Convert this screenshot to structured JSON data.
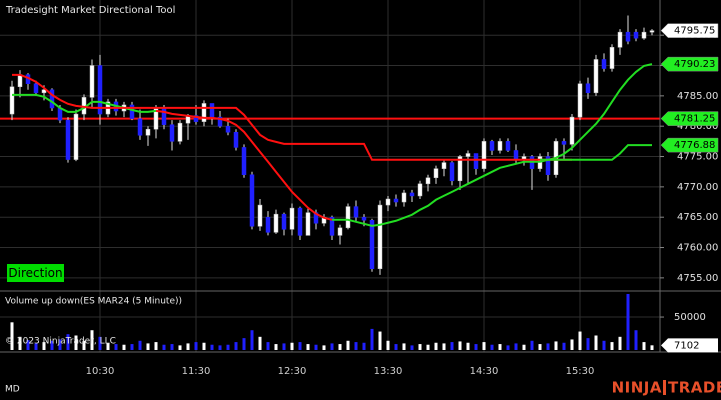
{
  "chart_data": {
    "type": "candlestick",
    "title": "Tradesight Market Directional Tool",
    "button": "Direction",
    "footer": "MD",
    "logo": [
      "NINJA",
      "TRADER"
    ],
    "copyright": "© 2023 NinjaTrader, LLC",
    "grid": true,
    "up_color": "#ffffff",
    "down_color": "#2020ff",
    "categories": [
      null,
      null,
      null,
      null,
      null,
      null,
      null,
      null,
      null,
      null,
      null,
      "10:30",
      null,
      null,
      null,
      null,
      null,
      null,
      null,
      null,
      null,
      null,
      null,
      "11:30",
      null,
      null,
      null,
      null,
      null,
      null,
      null,
      null,
      null,
      null,
      null,
      "12:30",
      null,
      null,
      null,
      null,
      null,
      null,
      null,
      null,
      null,
      null,
      null,
      "13:30",
      null,
      null,
      null,
      null,
      null,
      null,
      null,
      null,
      null,
      null,
      null,
      "14:30",
      null,
      null,
      null,
      null,
      null,
      null,
      null,
      null,
      null,
      null,
      null,
      "15:30",
      null,
      null,
      null,
      null,
      null,
      null,
      null,
      null,
      null
    ],
    "candles": [
      [
        4782,
        4787.5,
        4781,
        4786.5
      ],
      [
        4786.5,
        4789.25,
        4784.75,
        4788.5
      ],
      [
        4788.5,
        4788.75,
        4786,
        4787
      ],
      [
        4787,
        4787.5,
        4785,
        4785.5
      ],
      [
        4785.5,
        4786.75,
        4784.25,
        4786
      ],
      [
        4786,
        4786.25,
        4782.5,
        4783
      ],
      [
        4783,
        4783.5,
        4780.5,
        4781
      ],
      [
        4781,
        4781.5,
        4774,
        4774.5
      ],
      [
        4774.5,
        4782.75,
        4774.25,
        4782
      ],
      [
        4782,
        4785.25,
        4781,
        4784.75
      ],
      [
        4784.75,
        4791,
        4783,
        4790
      ],
      [
        4790,
        4791.75,
        4780.25,
        4782
      ],
      [
        4782,
        4784.5,
        4781.5,
        4784
      ],
      [
        4784,
        4784.5,
        4781.75,
        4782.5
      ],
      [
        4782.5,
        4784,
        4781.5,
        4783.5
      ],
      [
        4783.5,
        4784,
        4781,
        4781.25
      ],
      [
        4781.25,
        4782.75,
        4777.75,
        4778.5
      ],
      [
        4778.5,
        4780,
        4776.75,
        4779.5
      ],
      [
        4779.5,
        4783.5,
        4778,
        4783
      ],
      [
        4783,
        4783.5,
        4779.5,
        4780.25
      ],
      [
        4780.25,
        4781,
        4776,
        4777.5
      ],
      [
        4777.5,
        4781,
        4777,
        4780.5
      ],
      [
        4780.5,
        4782,
        4777.75,
        4781.75
      ],
      [
        4781.75,
        4783.5,
        4780.25,
        4780.75
      ],
      [
        4780.75,
        4784.25,
        4780,
        4783.75
      ],
      [
        4783.75,
        4783.75,
        4780.25,
        4781.5
      ],
      [
        4781.5,
        4782.5,
        4779.75,
        4780
      ],
      [
        4780,
        4781.25,
        4778.5,
        4779
      ],
      [
        4779,
        4779.5,
        4776,
        4776.5
      ],
      [
        4776.5,
        4777,
        4771.5,
        4772
      ],
      [
        4772,
        4772.5,
        4763,
        4763.5
      ],
      [
        4763.5,
        4768,
        4762.75,
        4767
      ],
      [
        4765,
        4766,
        4762,
        4762.5
      ],
      [
        4762.5,
        4766.25,
        4762.25,
        4765.5
      ],
      [
        4765.5,
        4765.75,
        4762,
        4763
      ],
      [
        4763,
        4767.25,
        4762,
        4766.5
      ],
      [
        4766.5,
        4766.75,
        4761.25,
        4762
      ],
      [
        4762,
        4766.5,
        4762,
        4765.75
      ],
      [
        4765.75,
        4766.25,
        4763,
        4764
      ],
      [
        4764,
        4765.5,
        4763.5,
        4765
      ],
      [
        4765,
        4765.25,
        4761.25,
        4762
      ],
      [
        4762,
        4763.75,
        4760.5,
        4763.25
      ],
      [
        4763.25,
        4767.25,
        4763,
        4766.75
      ],
      [
        4766.75,
        4767.75,
        4764.25,
        4765
      ],
      [
        4765,
        4765.5,
        4763.5,
        4764.5
      ],
      [
        4764.5,
        4764.75,
        4756,
        4756.5
      ],
      [
        4756.5,
        4767.75,
        4755.5,
        4767
      ],
      [
        4767,
        4768.5,
        4766,
        4768
      ],
      [
        4768,
        4768.75,
        4766.75,
        4767.5
      ],
      [
        4767.5,
        4769.5,
        4766.75,
        4769
      ],
      [
        4769,
        4769.5,
        4767.5,
        4768.5
      ],
      [
        4768.5,
        4771,
        4768,
        4770.5
      ],
      [
        4770.5,
        4772,
        4769.25,
        4771.5
      ],
      [
        4771.5,
        4773.5,
        4770.5,
        4773
      ],
      [
        4773,
        4774.5,
        4771.75,
        4774
      ],
      [
        4774,
        4774.25,
        4770.25,
        4771
      ],
      [
        4771,
        4775.25,
        4769.5,
        4775
      ],
      [
        4775,
        4776,
        4770.5,
        4775.5
      ],
      [
        4775.5,
        4775.5,
        4772,
        4773
      ],
      [
        4773,
        4778,
        4772.5,
        4777.5
      ],
      [
        4777.5,
        4777.75,
        4775.25,
        4776
      ],
      [
        4776,
        4778,
        4775.5,
        4777.5
      ],
      [
        4777.5,
        4778,
        4775.75,
        4776
      ],
      [
        4776,
        4777,
        4773.75,
        4774.5
      ],
      [
        4774.5,
        4775.5,
        4773.5,
        4775
      ],
      [
        4775,
        4775.25,
        4769.5,
        4773
      ],
      [
        4773,
        4775.5,
        4772.5,
        4775
      ],
      [
        4775,
        4775.75,
        4771,
        4772
      ],
      [
        4772,
        4778,
        4771.5,
        4777.5
      ],
      [
        4777.5,
        4778,
        4774.5,
        4777
      ],
      [
        4777,
        4782,
        4776,
        4781.5
      ],
      [
        4781.5,
        4787.5,
        4781,
        4787
      ],
      [
        4787,
        4788,
        4784.5,
        4785.5
      ],
      [
        4785.5,
        4791.75,
        4785,
        4791
      ],
      [
        4791,
        4792,
        4789,
        4789.5
      ],
      [
        4789.5,
        4793.5,
        4789,
        4793
      ],
      [
        4793,
        4796,
        4791.75,
        4795.5
      ],
      [
        4795.5,
        4798.25,
        4793.5,
        4794
      ],
      [
        4795.5,
        4796,
        4794,
        4794.5
      ],
      [
        4794.5,
        4796.25,
        4794.25,
        4795.5
      ],
      [
        4795.5,
        4796,
        4795,
        4795.75
      ]
    ],
    "series": [
      {
        "color": "#22dd22",
        "values": [
          4785.16,
          4785.16,
          4785.16,
          4785.16,
          4784.84,
          4784.01,
          4783.02,
          4782.36,
          4782.36,
          4783.02,
          4784.01,
          4784.01,
          4783.68,
          4783.35,
          4783.02,
          4782.69,
          4782.36,
          4782.36,
          4782.53,
          null,
          null,
          null,
          null,
          null,
          null,
          null,
          null,
          null,
          null,
          null,
          null,
          null,
          null,
          null,
          null,
          null,
          null,
          null,
          null,
          null,
          4764.57,
          4764.57,
          4764.57,
          4764.24,
          4763.91,
          4763.58,
          4763.75,
          4764.08,
          4764.41,
          4764.9,
          4765.4,
          4766.22,
          4766.88,
          4767.87,
          4768.53,
          4769.18,
          4769.84,
          4770.5,
          4771.16,
          4771.82,
          4772.48,
          4773.14,
          4773.47,
          4773.8,
          4774.13,
          4774.13,
          4774.13,
          4774.46,
          4774.79,
          4775.44,
          4776.43,
          4777.75,
          4779.07,
          4780.39,
          4782.03,
          4784.01,
          4785.99,
          4787.64,
          4788.95,
          4789.94,
          4790.23
        ]
      },
      {
        "color": "#ff1010",
        "values": [
          null,
          null,
          null,
          null,
          null,
          null,
          null,
          null,
          null,
          null,
          null,
          null,
          null,
          null,
          null,
          null,
          null,
          null,
          4782.53,
          4782.36,
          4782.03,
          4781.87,
          4781.7,
          4781.54,
          4781.38,
          4781.38,
          4781.21,
          4780.88,
          4780.22,
          4779.07,
          4777.42,
          4775.77,
          4774.13,
          4772.48,
          4770.83,
          4769.18,
          4767.87,
          4766.55,
          4765.56,
          4764.9,
          4764.57,
          null,
          null,
          null,
          null,
          null,
          null,
          null,
          null,
          null,
          null,
          null,
          null,
          null,
          null,
          null,
          null,
          null,
          null,
          null,
          null,
          null,
          null,
          null,
          null,
          null,
          null,
          null,
          null,
          null,
          null,
          null,
          null,
          null,
          null,
          null,
          null,
          null,
          null,
          null,
          null
        ]
      },
      {
        "color": "#ff1010",
        "values": [
          4788.46,
          4788.46,
          4787.97,
          4787.31,
          4786.32,
          4785.16,
          4784.34,
          4783.68,
          4783.35,
          4783.19,
          4783.02,
          4783.02,
          4783.02,
          4783.02,
          4783.02,
          4783.02,
          4783.02,
          4783.02,
          4783.02,
          4783.02,
          4783.02,
          4783.02,
          4783.02,
          4783.02,
          4783.02,
          4783.02,
          4783.02,
          4783.02,
          4783.02,
          4781.87,
          4780.22,
          4778.58,
          4777.75,
          4777.42,
          4777.09,
          4777.09,
          4777.09,
          4777.09,
          4777.09,
          4777.09,
          4777.09,
          4777.09,
          4777.09,
          4777.09,
          4777.09,
          4774.46,
          4774.46,
          4774.46,
          4774.46,
          4774.46,
          4774.46,
          4774.46,
          4774.46,
          4774.46,
          4774.46,
          4774.46,
          4774.46,
          4774.46,
          4774.46,
          4774.46,
          4774.46,
          4774.46,
          4774.46,
          4774.46,
          4774.46,
          4774.46,
          4774.46,
          4774.46,
          4774.46,
          4774.46,
          4774.46,
          null,
          null,
          null,
          null,
          null,
          null,
          null,
          null,
          null,
          null
        ]
      },
      {
        "color": "#22dd22",
        "values": [
          null,
          null,
          null,
          null,
          null,
          null,
          null,
          null,
          null,
          null,
          null,
          null,
          null,
          null,
          null,
          null,
          null,
          null,
          null,
          null,
          null,
          null,
          null,
          null,
          null,
          null,
          null,
          null,
          null,
          null,
          null,
          null,
          null,
          null,
          null,
          null,
          null,
          null,
          null,
          null,
          null,
          null,
          null,
          null,
          null,
          null,
          null,
          null,
          null,
          null,
          null,
          null,
          null,
          null,
          null,
          null,
          null,
          null,
          null,
          null,
          null,
          null,
          null,
          null,
          null,
          null,
          4774.46,
          4774.46,
          4774.46,
          4774.46,
          4774.46,
          4774.46,
          4774.46,
          4774.46,
          4774.46,
          4774.46,
          4775.5,
          4776.88,
          4776.88,
          4776.88,
          4776.88
        ]
      }
    ],
    "level": {
      "value": 4781.25,
      "color": "#ff1010"
    },
    "ylim": [
      4753.0,
      4800.8
    ],
    "yticks": [
      {
        "value": 4755,
        "label": "4755.00"
      },
      {
        "value": 4760,
        "label": "4760.00"
      },
      {
        "value": 4765,
        "label": "4765.00"
      },
      {
        "value": 4770,
        "label": "4770.00"
      },
      {
        "value": 4775,
        "label": "4775.00"
      },
      {
        "value": 4780,
        "label": "4780.00"
      },
      {
        "value": 4785,
        "label": "4785.00"
      },
      {
        "value": 4790,
        "label": "4790.00"
      },
      {
        "value": 4795,
        "label": "4795.00"
      }
    ],
    "volume": {
      "title": "Volume up down(ES MAR24 (5 Minute))",
      "ylim": [
        0,
        88000
      ],
      "yticks": [
        50000
      ],
      "values": [
        42000,
        20000,
        15000,
        10000,
        12000,
        14000,
        16000,
        24000,
        22000,
        14000,
        30000,
        20000,
        10000,
        9000,
        8000,
        9000,
        14000,
        10000,
        12000,
        8000,
        9000,
        7000,
        10000,
        12000,
        11000,
        8000,
        7000,
        8000,
        12000,
        18000,
        30000,
        20000,
        12000,
        9000,
        10000,
        11000,
        12000,
        9000,
        8000,
        7000,
        10000,
        9000,
        14000,
        12000,
        11000,
        32000,
        28000,
        14000,
        9000,
        10000,
        7000,
        9000,
        8000,
        11000,
        10000,
        12000,
        13000,
        11000,
        9000,
        12000,
        8000,
        9000,
        7000,
        10000,
        8000,
        14000,
        9000,
        10000,
        13000,
        11000,
        16000,
        28000,
        18000,
        22000,
        14000,
        12000,
        20000,
        85000,
        30000,
        12000,
        7102
      ]
    }
  }
}
